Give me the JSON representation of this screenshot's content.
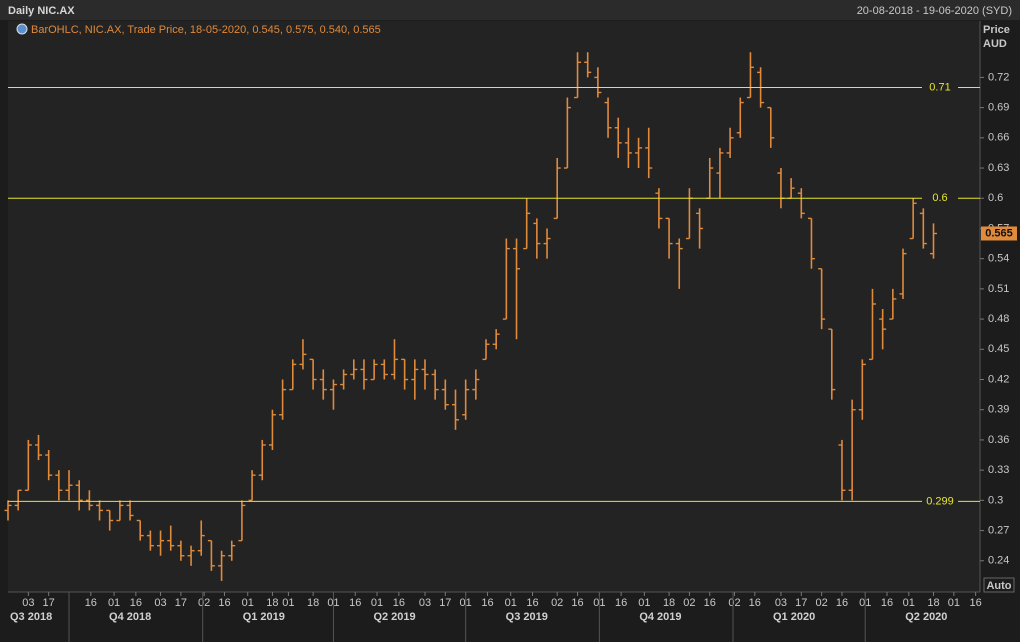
{
  "header": {
    "title": "Daily NIC.AX",
    "range": "20-08-2018 - 19-06-2020 (SYD)"
  },
  "chart_data": {
    "type": "ohlc",
    "legend_label": "BarOHLC, NIC.AX, Trade Price, 18-05-2020, 0.545, 0.575, 0.540, 0.565",
    "y_axis_label": "Price",
    "y_axis_unit": "AUD",
    "auto_button": "Auto",
    "color": "#e08a3c",
    "xlim": [
      "20-08-2018",
      "19-06-2020"
    ],
    "ylim": [
      0.209,
      0.776
    ],
    "yticks": [
      0.24,
      0.27,
      0.3,
      0.33,
      0.36,
      0.39,
      0.42,
      0.45,
      0.48,
      0.51,
      0.54,
      0.57,
      0.6,
      0.63,
      0.66,
      0.69,
      0.72
    ],
    "xticks": [
      {
        "value": "03-09-2018",
        "label": "03"
      },
      {
        "value": "17-09-2018",
        "label": "17"
      },
      {
        "value": "16-10-2018",
        "label": "16"
      },
      {
        "value": "01-11-2018",
        "label": "01"
      },
      {
        "value": "16-11-2018",
        "label": "16"
      },
      {
        "value": "03-12-2018",
        "label": "03"
      },
      {
        "value": "17-12-2018",
        "label": "17"
      },
      {
        "value": "02-01-2019",
        "label": "02"
      },
      {
        "value": "16-01-2019",
        "label": "16"
      },
      {
        "value": "01-02-2019",
        "label": "01"
      },
      {
        "value": "18-02-2019",
        "label": "18"
      },
      {
        "value": "01-03-2019",
        "label": "01"
      },
      {
        "value": "18-03-2019",
        "label": "18"
      },
      {
        "value": "01-04-2019",
        "label": "01"
      },
      {
        "value": "16-04-2019",
        "label": "16"
      },
      {
        "value": "01-05-2019",
        "label": "01"
      },
      {
        "value": "16-05-2019",
        "label": "16"
      },
      {
        "value": "03-06-2019",
        "label": "03"
      },
      {
        "value": "17-06-2019",
        "label": "17"
      },
      {
        "value": "01-07-2019",
        "label": "01"
      },
      {
        "value": "16-07-2019",
        "label": "16"
      },
      {
        "value": "01-08-2019",
        "label": "01"
      },
      {
        "value": "16-08-2019",
        "label": "16"
      },
      {
        "value": "02-09-2019",
        "label": "02"
      },
      {
        "value": "16-09-2019",
        "label": "16"
      },
      {
        "value": "01-10-2019",
        "label": "01"
      },
      {
        "value": "16-10-2019",
        "label": "16"
      },
      {
        "value": "01-11-2019",
        "label": "01"
      },
      {
        "value": "18-11-2019",
        "label": "18"
      },
      {
        "value": "02-12-2019",
        "label": "02"
      },
      {
        "value": "16-12-2019",
        "label": "16"
      },
      {
        "value": "02-01-2020",
        "label": "02"
      },
      {
        "value": "16-01-2020",
        "label": "16"
      },
      {
        "value": "03-02-2020",
        "label": "03"
      },
      {
        "value": "17-02-2020",
        "label": "17"
      },
      {
        "value": "02-03-2020",
        "label": "02"
      },
      {
        "value": "16-03-2020",
        "label": "16"
      },
      {
        "value": "01-04-2020",
        "label": "01"
      },
      {
        "value": "16-04-2020",
        "label": "16"
      },
      {
        "value": "01-05-2020",
        "label": "01"
      },
      {
        "value": "18-05-2020",
        "label": "18"
      },
      {
        "value": "01-06-2020",
        "label": "01"
      },
      {
        "value": "16-06-2020",
        "label": "16"
      }
    ],
    "quarters": [
      {
        "value": "01-07-2018",
        "label": "Q3 2018"
      },
      {
        "value": "01-10-2018",
        "label": "Q4 2018"
      },
      {
        "value": "01-01-2019",
        "label": "Q1 2019"
      },
      {
        "value": "01-04-2019",
        "label": "Q2 2019"
      },
      {
        "value": "01-07-2019",
        "label": "Q3 2019"
      },
      {
        "value": "01-10-2019",
        "label": "Q4 2019"
      },
      {
        "value": "01-01-2020",
        "label": "Q1 2020"
      },
      {
        "value": "01-04-2020",
        "label": "Q2 2020"
      }
    ],
    "levels": [
      {
        "value": 0.71,
        "color": "#e6e62e"
      },
      {
        "value": 0.6,
        "color": "#e6e62e"
      },
      {
        "value": 0.299,
        "color": "#e6e62e"
      }
    ],
    "x": [
      "20-08-2018",
      "27-08-2018",
      "03-09-2018",
      "10-09-2018",
      "17-09-2018",
      "24-09-2018",
      "01-10-2018",
      "08-10-2018",
      "15-10-2018",
      "22-10-2018",
      "29-10-2018",
      "05-11-2018",
      "12-11-2018",
      "19-11-2018",
      "26-11-2018",
      "03-12-2018",
      "10-12-2018",
      "17-12-2018",
      "24-12-2018",
      "31-12-2018",
      "07-01-2019",
      "14-01-2019",
      "21-01-2019",
      "28-01-2019",
      "04-02-2019",
      "11-02-2019",
      "18-02-2019",
      "25-02-2019",
      "04-03-2019",
      "11-03-2019",
      "18-03-2019",
      "25-03-2019",
      "01-04-2019",
      "08-04-2019",
      "15-04-2019",
      "22-04-2019",
      "29-04-2019",
      "06-05-2019",
      "13-05-2019",
      "20-05-2019",
      "27-05-2019",
      "03-06-2019",
      "10-06-2019",
      "17-06-2019",
      "24-06-2019",
      "01-07-2019",
      "08-07-2019",
      "15-07-2019",
      "22-07-2019",
      "29-07-2019",
      "05-08-2019",
      "12-08-2019",
      "19-08-2019",
      "26-08-2019",
      "02-09-2019",
      "09-09-2019",
      "16-09-2019",
      "23-09-2019",
      "30-09-2019",
      "07-10-2019",
      "14-10-2019",
      "21-10-2019",
      "28-10-2019",
      "04-11-2019",
      "11-11-2019",
      "18-11-2019",
      "25-11-2019",
      "02-12-2019",
      "09-12-2019",
      "16-12-2019",
      "23-12-2019",
      "30-12-2019",
      "06-01-2020",
      "13-01-2020",
      "20-01-2020",
      "27-01-2020",
      "03-02-2020",
      "10-02-2020",
      "17-02-2020",
      "24-02-2020",
      "02-03-2020",
      "09-03-2020",
      "16-03-2020",
      "23-03-2020",
      "30-03-2020",
      "06-04-2020",
      "13-04-2020",
      "20-04-2020",
      "27-04-2020",
      "04-05-2020",
      "11-05-2020",
      "18-05-2020"
    ],
    "open": [
      0.29,
      0.295,
      0.31,
      0.355,
      0.345,
      0.325,
      0.31,
      0.315,
      0.3,
      0.295,
      0.29,
      0.28,
      0.295,
      0.28,
      0.265,
      0.255,
      0.26,
      0.255,
      0.245,
      0.25,
      0.26,
      0.235,
      0.245,
      0.26,
      0.3,
      0.325,
      0.355,
      0.385,
      0.41,
      0.435,
      0.44,
      0.42,
      0.41,
      0.415,
      0.425,
      0.43,
      0.42,
      0.435,
      0.425,
      0.44,
      0.42,
      0.43,
      0.425,
      0.41,
      0.395,
      0.385,
      0.41,
      0.44,
      0.455,
      0.48,
      0.55,
      0.55,
      0.575,
      0.555,
      0.58,
      0.63,
      0.7,
      0.735,
      0.72,
      0.695,
      0.67,
      0.655,
      0.645,
      0.65,
      0.605,
      0.58,
      0.555,
      0.56,
      0.585,
      0.6,
      0.625,
      0.645,
      0.665,
      0.7,
      0.725,
      0.69,
      0.625,
      0.6,
      0.605,
      0.58,
      0.53,
      0.47,
      0.355,
      0.31,
      0.39,
      0.44,
      0.48,
      0.48,
      0.505,
      0.56,
      0.585,
      0.545
    ],
    "high": [
      0.3,
      0.31,
      0.36,
      0.365,
      0.35,
      0.33,
      0.33,
      0.32,
      0.31,
      0.3,
      0.29,
      0.3,
      0.3,
      0.28,
      0.27,
      0.27,
      0.275,
      0.26,
      0.255,
      0.28,
      0.26,
      0.25,
      0.26,
      0.3,
      0.33,
      0.36,
      0.39,
      0.42,
      0.44,
      0.46,
      0.44,
      0.43,
      0.42,
      0.43,
      0.44,
      0.44,
      0.44,
      0.44,
      0.46,
      0.44,
      0.44,
      0.44,
      0.43,
      0.42,
      0.41,
      0.42,
      0.43,
      0.46,
      0.47,
      0.56,
      0.56,
      0.6,
      0.58,
      0.57,
      0.64,
      0.7,
      0.745,
      0.745,
      0.73,
      0.7,
      0.68,
      0.67,
      0.66,
      0.67,
      0.61,
      0.58,
      0.56,
      0.61,
      0.59,
      0.64,
      0.65,
      0.67,
      0.7,
      0.745,
      0.73,
      0.69,
      0.63,
      0.62,
      0.61,
      0.58,
      0.53,
      0.47,
      0.36,
      0.4,
      0.44,
      0.51,
      0.49,
      0.51,
      0.55,
      0.6,
      0.59,
      0.575
    ],
    "low": [
      0.28,
      0.29,
      0.31,
      0.34,
      0.32,
      0.3,
      0.3,
      0.29,
      0.29,
      0.28,
      0.27,
      0.28,
      0.28,
      0.26,
      0.25,
      0.245,
      0.25,
      0.24,
      0.235,
      0.245,
      0.23,
      0.22,
      0.24,
      0.26,
      0.3,
      0.32,
      0.35,
      0.38,
      0.41,
      0.43,
      0.41,
      0.4,
      0.39,
      0.41,
      0.42,
      0.41,
      0.42,
      0.42,
      0.42,
      0.41,
      0.4,
      0.41,
      0.4,
      0.39,
      0.37,
      0.38,
      0.4,
      0.44,
      0.45,
      0.48,
      0.46,
      0.55,
      0.54,
      0.54,
      0.58,
      0.63,
      0.7,
      0.72,
      0.7,
      0.66,
      0.64,
      0.63,
      0.63,
      0.62,
      0.57,
      0.54,
      0.51,
      0.56,
      0.55,
      0.6,
      0.6,
      0.64,
      0.66,
      0.7,
      0.69,
      0.65,
      0.59,
      0.6,
      0.58,
      0.53,
      0.47,
      0.4,
      0.3,
      0.3,
      0.38,
      0.44,
      0.45,
      0.48,
      0.5,
      0.56,
      0.55,
      0.54
    ],
    "close": [
      0.295,
      0.31,
      0.355,
      0.345,
      0.325,
      0.31,
      0.315,
      0.3,
      0.295,
      0.29,
      0.28,
      0.295,
      0.285,
      0.265,
      0.255,
      0.26,
      0.255,
      0.245,
      0.25,
      0.265,
      0.235,
      0.245,
      0.255,
      0.295,
      0.325,
      0.355,
      0.385,
      0.41,
      0.435,
      0.445,
      0.42,
      0.41,
      0.415,
      0.425,
      0.43,
      0.42,
      0.435,
      0.425,
      0.44,
      0.42,
      0.43,
      0.425,
      0.41,
      0.395,
      0.38,
      0.41,
      0.42,
      0.455,
      0.465,
      0.55,
      0.53,
      0.585,
      0.555,
      0.56,
      0.63,
      0.69,
      0.735,
      0.725,
      0.705,
      0.67,
      0.655,
      0.645,
      0.65,
      0.63,
      0.58,
      0.555,
      0.55,
      0.6,
      0.57,
      0.63,
      0.645,
      0.66,
      0.695,
      0.73,
      0.695,
      0.66,
      0.6,
      0.61,
      0.585,
      0.54,
      0.48,
      0.41,
      0.31,
      0.39,
      0.435,
      0.495,
      0.47,
      0.5,
      0.545,
      0.595,
      0.555,
      0.565
    ]
  }
}
